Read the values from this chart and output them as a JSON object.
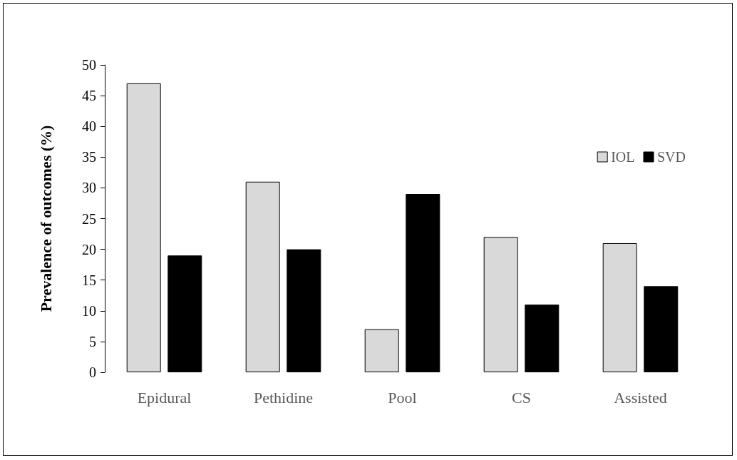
{
  "chart_data": {
    "type": "bar",
    "ylabel": "Prevalence of outcomes (%)",
    "categories": [
      "Epidural",
      "Pethidine",
      "Pool",
      "CS",
      "Assisted"
    ],
    "series": [
      {
        "name": "IOL",
        "color": "#d9d9d9",
        "values": [
          47,
          31,
          7,
          22,
          21
        ]
      },
      {
        "name": "SVD",
        "color": "#000000",
        "values": [
          19,
          20,
          29,
          11,
          14
        ]
      }
    ],
    "ylim": [
      0,
      50
    ],
    "yticks": [
      0,
      5,
      10,
      15,
      20,
      25,
      30,
      35,
      40,
      45,
      50
    ],
    "grid": false,
    "legend": "top right"
  }
}
